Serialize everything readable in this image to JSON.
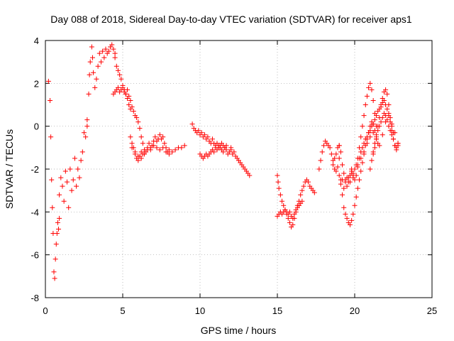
{
  "chart_data": {
    "type": "scatter",
    "title": "Day 088 of 2018, Sidereal Day-to-day VTEC variation (SDTVAR) for receiver aps1",
    "xlabel": "GPS time / hours",
    "ylabel": "SDTVAR / TECUs",
    "xlim": [
      0,
      25
    ],
    "ylim": [
      -8,
      4
    ],
    "xticks": [
      0,
      5,
      10,
      15,
      20,
      25
    ],
    "yticks": [
      -8,
      -6,
      -4,
      -2,
      0,
      2,
      4
    ],
    "xtick_labels": [
      "0",
      "5",
      "10",
      "15",
      "20",
      "25"
    ],
    "ytick_labels": [
      "-8",
      "-6",
      "-4",
      "-2",
      "0",
      "2",
      "4"
    ],
    "grid": true,
    "marker": "+",
    "color": "#ff0000",
    "series": [
      {
        "name": "SDTVAR",
        "segments": [
          {
            "x": [
              0.2,
              0.3,
              0.35,
              0.4,
              0.45,
              0.5,
              0.55,
              0.6,
              0.65,
              0.7,
              0.75,
              0.8,
              0.85,
              0.9
            ],
            "y": [
              2.1,
              1.2,
              -0.5,
              -2.5,
              -3.8,
              -5.0,
              -6.8,
              -7.1,
              -6.2,
              -5.5,
              -5.0,
              -4.5,
              -4.8,
              -4.3
            ]
          },
          {
            "x": [
              0.9,
              1.0,
              1.1,
              1.2,
              1.3,
              1.4,
              1.5,
              1.6,
              1.7,
              1.8,
              1.9,
              2.0,
              2.1,
              2.2,
              2.3,
              2.4,
              2.5,
              2.6,
              2.7
            ],
            "y": [
              -3.2,
              -2.4,
              -2.8,
              -3.5,
              -2.1,
              -2.6,
              -3.8,
              -2.0,
              -3.0,
              -2.5,
              -1.5,
              -2.8,
              -2.0,
              -2.4,
              -1.6,
              -1.2,
              -0.3,
              -0.5,
              0.0
            ]
          },
          {
            "x": [
              2.7,
              2.8,
              2.85,
              2.9,
              3.0,
              3.05,
              3.1,
              3.2,
              3.3,
              3.4,
              3.5,
              3.6,
              3.7,
              3.8,
              3.9,
              4.0,
              4.1,
              4.2,
              4.3,
              4.4,
              4.5
            ],
            "y": [
              0.3,
              1.5,
              2.4,
              3.0,
              3.7,
              3.2,
              2.5,
              1.8,
              2.2,
              2.8,
              3.4,
              3.0,
              3.5,
              3.2,
              3.6,
              3.4,
              3.5,
              3.7,
              3.8,
              3.6,
              3.4
            ]
          },
          {
            "x": [
              4.5,
              4.6,
              4.7,
              4.8,
              4.9,
              5.0,
              5.1,
              5.2,
              5.3,
              5.4,
              5.5,
              5.6,
              5.7,
              5.8,
              5.9,
              6.0,
              6.1,
              6.2,
              6.3
            ],
            "y": [
              3.2,
              2.8,
              2.6,
              2.4,
              2.2,
              1.8,
              1.6,
              1.5,
              1.7,
              1.4,
              1.2,
              0.9,
              0.7,
              0.5,
              0.4,
              0.2,
              -0.1,
              -0.5,
              -0.8
            ]
          },
          {
            "x": [
              4.4,
              4.5,
              4.6,
              4.7,
              4.8,
              4.9,
              5.0,
              5.1,
              5.2,
              5.3,
              5.4,
              5.5
            ],
            "y": [
              1.5,
              1.6,
              1.7,
              1.8,
              1.6,
              1.7,
              1.9,
              1.7,
              1.5,
              1.3,
              1.0,
              0.8
            ]
          },
          {
            "x": [
              5.5,
              5.6,
              5.7,
              5.8,
              5.9,
              6.0,
              6.1,
              6.2,
              6.3,
              6.4,
              6.5,
              6.6,
              6.7,
              6.8,
              6.9,
              7.0,
              7.1,
              7.2,
              7.3,
              7.4,
              7.5,
              7.6,
              7.7,
              7.8,
              7.9,
              8.0
            ],
            "y": [
              -0.5,
              -0.8,
              -1.0,
              -1.3,
              -1.5,
              -1.6,
              -1.4,
              -1.2,
              -1.3,
              -1.1,
              -1.2,
              -1.0,
              -0.8,
              -1.1,
              -0.9,
              -0.7,
              -0.5,
              -0.7,
              -0.6,
              -0.4,
              -0.6,
              -0.5,
              -0.8,
              -1.0,
              -1.2,
              -1.1
            ]
          },
          {
            "x": [
              5.6,
              5.8,
              6.0,
              6.2,
              6.4,
              6.6,
              6.8,
              7.0,
              7.2,
              7.4,
              7.6,
              7.8,
              8.0,
              8.2,
              8.4,
              8.6,
              8.8,
              9.0
            ],
            "y": [
              -1.0,
              -1.2,
              -1.4,
              -1.5,
              -1.3,
              -1.1,
              -1.0,
              -0.9,
              -1.0,
              -1.1,
              -1.0,
              -1.2,
              -1.3,
              -1.2,
              -1.1,
              -1.0,
              -1.0,
              -0.9
            ]
          },
          {
            "x": [
              9.5,
              9.6,
              9.7,
              9.8,
              9.9,
              10.0,
              10.1,
              10.2,
              10.3,
              10.4,
              10.5,
              10.6,
              10.7,
              10.8,
              10.9,
              11.0,
              11.1,
              11.2,
              11.3,
              11.4,
              11.5,
              11.6,
              11.7,
              11.8,
              11.9,
              12.0
            ],
            "y": [
              0.1,
              -0.1,
              -0.2,
              -0.3,
              -0.2,
              -0.4,
              -0.3,
              -0.5,
              -0.4,
              -0.6,
              -0.5,
              -0.7,
              -0.8,
              -0.6,
              -0.8,
              -0.9,
              -0.8,
              -1.0,
              -0.9,
              -1.1,
              -1.2,
              -1.0,
              -1.1,
              -1.3,
              -1.2,
              -1.0
            ]
          },
          {
            "x": [
              10.0,
              10.1,
              10.2,
              10.3,
              10.4,
              10.5,
              10.6,
              10.7,
              10.8,
              10.9,
              11.0,
              11.1,
              11.2,
              11.3,
              11.4,
              11.5,
              11.6,
              11.7
            ],
            "y": [
              -1.3,
              -1.4,
              -1.5,
              -1.4,
              -1.3,
              -1.4,
              -1.3,
              -1.2,
              -1.1,
              -1.2,
              -1.0,
              -1.1,
              -0.9,
              -1.0,
              -0.8,
              -0.9,
              -1.0,
              -0.9
            ]
          },
          {
            "x": [
              12.0,
              12.1,
              12.2,
              12.3,
              12.4,
              12.5,
              12.6,
              12.7,
              12.8,
              12.9,
              13.0,
              13.1,
              13.2
            ],
            "y": [
              -1.1,
              -1.3,
              -1.2,
              -1.4,
              -1.5,
              -1.6,
              -1.7,
              -1.8,
              -1.9,
              -2.0,
              -2.1,
              -2.2,
              -2.3
            ]
          },
          {
            "x": [
              15.0,
              15.05,
              15.1,
              15.2,
              15.3,
              15.4,
              15.5,
              15.6,
              15.7,
              15.8,
              15.9,
              16.0,
              16.1,
              16.2,
              16.3,
              16.4,
              16.5,
              16.6,
              16.7,
              16.8,
              16.9,
              17.0,
              17.1,
              17.2,
              17.3,
              17.4
            ],
            "y": [
              -2.3,
              -2.6,
              -2.9,
              -3.2,
              -3.5,
              -3.7,
              -3.9,
              -4.1,
              -4.3,
              -4.5,
              -4.7,
              -4.6,
              -4.3,
              -4.0,
              -3.7,
              -3.5,
              -3.2,
              -3.0,
              -2.8,
              -2.6,
              -2.5,
              -2.6,
              -2.8,
              -2.9,
              -3.0,
              -3.1
            ]
          },
          {
            "x": [
              15.0,
              15.1,
              15.2,
              15.3,
              15.4,
              15.5,
              15.6,
              15.7,
              15.8,
              15.9,
              16.0,
              16.1,
              16.2,
              16.3,
              16.4,
              16.5,
              16.6
            ],
            "y": [
              -4.2,
              -4.1,
              -4.0,
              -4.1,
              -4.0,
              -3.9,
              -4.0,
              -4.1,
              -4.0,
              -4.2,
              -4.3,
              -4.1,
              -3.9,
              -3.8,
              -3.7,
              -3.6,
              -3.5
            ]
          },
          {
            "x": [
              17.7,
              17.8,
              17.9,
              18.0,
              18.1,
              18.2,
              18.3,
              18.4,
              18.5,
              18.6,
              18.7,
              18.8,
              18.9,
              19.0
            ],
            "y": [
              -2.0,
              -1.6,
              -1.2,
              -0.9,
              -0.7,
              -0.8,
              -0.9,
              -1.0,
              -1.3,
              -1.6,
              -1.5,
              -1.3,
              -1.0,
              -0.9
            ]
          },
          {
            "x": [
              19.0,
              19.1,
              19.2,
              19.3,
              19.4,
              19.5,
              19.6,
              19.7,
              19.8,
              19.9,
              20.0,
              20.1,
              20.2,
              20.3,
              20.4,
              20.5,
              20.6,
              20.7,
              20.8,
              20.9,
              21.0,
              21.1,
              21.2,
              21.3,
              21.4,
              21.5
            ],
            "y": [
              -1.5,
              -2.5,
              -3.2,
              -3.8,
              -4.1,
              -4.3,
              -4.5,
              -4.6,
              -4.4,
              -4.1,
              -3.7,
              -3.3,
              -2.9,
              -2.5,
              -2.1,
              -1.7,
              -1.3,
              -0.9,
              -0.6,
              -0.3,
              0.0,
              0.2,
              0.1,
              -0.2,
              -0.5,
              -0.8
            ]
          },
          {
            "x": [
              19.0,
              19.1,
              19.2,
              19.3,
              19.4,
              19.5,
              19.6,
              19.7,
              19.8,
              19.9,
              20.0,
              20.1,
              20.2,
              20.3,
              20.4,
              20.5,
              20.6,
              20.7,
              20.8,
              20.9,
              21.0,
              21.1,
              21.2,
              21.3,
              21.4
            ],
            "y": [
              -0.9,
              -1.2,
              -1.8,
              -2.2,
              -2.5,
              -2.4,
              -2.6,
              -2.3,
              -2.1,
              -2.4,
              -2.0,
              -1.8,
              -1.5,
              -1.0,
              -0.5,
              0.0,
              0.5,
              1.0,
              1.4,
              1.8,
              2.0,
              1.7,
              1.2,
              0.6,
              0.0
            ]
          },
          {
            "x": [
              20.0,
              20.2,
              20.4,
              20.6,
              20.8,
              21.0,
              21.2,
              21.4,
              21.6,
              21.8,
              22.0,
              22.2,
              22.4,
              22.6,
              22.8
            ],
            "y": [
              -2.0,
              -1.8,
              -1.5,
              -1.2,
              -0.8,
              -0.5,
              -0.3,
              -0.6,
              -0.9,
              -0.4,
              0.2,
              0.6,
              0.1,
              -0.3,
              -0.8
            ]
          },
          {
            "x": [
              21.0,
              21.1,
              21.2,
              21.3,
              21.4,
              21.5,
              21.6,
              21.7,
              21.8,
              21.9,
              22.0,
              22.1,
              22.2,
              22.3,
              22.4,
              22.5,
              22.6,
              22.7,
              22.8
            ],
            "y": [
              -2.0,
              -1.6,
              -1.2,
              -0.8,
              -0.4,
              0.0,
              0.4,
              0.9,
              1.3,
              1.6,
              1.7,
              1.5,
              1.0,
              0.4,
              -0.2,
              -0.6,
              -0.9,
              -1.0,
              -0.8
            ]
          },
          {
            "x": [
              21.2,
              21.3,
              21.4,
              21.5,
              21.6,
              21.7,
              21.8,
              21.9,
              22.0,
              22.1,
              22.2,
              22.3,
              22.4,
              22.5,
              22.6,
              22.7,
              22.8
            ],
            "y": [
              -1.3,
              -1.0,
              -0.6,
              -0.2,
              0.0,
              0.2,
              0.4,
              0.6,
              0.5,
              0.3,
              0.0,
              -0.2,
              -0.4,
              -0.6,
              -0.9,
              -1.1,
              -0.9
            ]
          },
          {
            "x": [
              19.8,
              19.9,
              20.0,
              20.1,
              20.2,
              20.3,
              20.4,
              20.5,
              20.6,
              20.7,
              20.8,
              20.9,
              21.0,
              21.1,
              21.2,
              21.3,
              21.4,
              21.5,
              21.6,
              21.7,
              21.8,
              21.9,
              22.0,
              22.1,
              22.2,
              22.3,
              22.4,
              22.5
            ],
            "y": [
              -2.0,
              -2.2,
              -2.5,
              -2.3,
              -1.9,
              -1.5,
              -1.2,
              -1.0,
              -0.8,
              -0.6,
              -0.5,
              -0.3,
              -0.2,
              0.0,
              0.1,
              0.3,
              0.5,
              0.7,
              0.8,
              1.0,
              1.1,
              1.2,
              1.0,
              0.8,
              0.5,
              0.2,
              0.0,
              -0.3
            ]
          },
          {
            "x": [
              18.6,
              18.7,
              18.8,
              18.9,
              19.0,
              19.1,
              19.2,
              19.3,
              19.4,
              19.5,
              19.6,
              19.7,
              19.8,
              19.9
            ],
            "y": [
              -1.8,
              -2.0,
              -2.1,
              -1.9,
              -2.3,
              -2.7,
              -2.5,
              -2.9,
              -2.6,
              -2.8,
              -2.4,
              -2.6,
              -2.2,
              -2.3
            ]
          }
        ]
      }
    ]
  }
}
